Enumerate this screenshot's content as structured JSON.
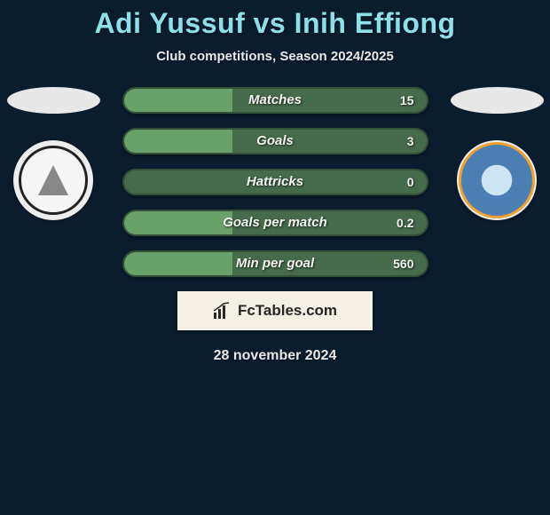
{
  "type": "infographic",
  "background_color": "#0a1d2e",
  "title": {
    "text": "Adi Yussuf vs Inih Effiong",
    "color": "#8de0ea",
    "fontsize": 32,
    "fontweight": "bold"
  },
  "subtitle": {
    "text": "Club competitions, Season 2024/2025",
    "color": "#e8e8e8",
    "fontsize": 15
  },
  "players": {
    "left": {
      "name": "Adi Yussuf",
      "avatar_bg": "#e8e8e8",
      "club_badge_bg": "#eeeeee",
      "club_ring": "#222222"
    },
    "right": {
      "name": "Inih Effiong",
      "avatar_bg": "#e8e8e8",
      "club_badge_bg": "#4b7fb4",
      "club_ring": "#f0a030"
    }
  },
  "bars": {
    "track_color": "#456b4b",
    "fill_default": "#6aa06a",
    "border_radius": 15,
    "height": 30,
    "label_fontsize": 15,
    "value_fontsize": 14,
    "label_color": "#f5f5f5",
    "items": [
      {
        "label": "Matches",
        "value": "15",
        "fill_pct": 36,
        "fill_color": "#6aa06a"
      },
      {
        "label": "Goals",
        "value": "3",
        "fill_pct": 36,
        "fill_color": "#6aa06a"
      },
      {
        "label": "Hattricks",
        "value": "0",
        "fill_pct": 0,
        "fill_color": "#6aa06a"
      },
      {
        "label": "Goals per match",
        "value": "0.2",
        "fill_pct": 36,
        "fill_color": "#6aa06a"
      },
      {
        "label": "Min per goal",
        "value": "560",
        "fill_pct": 36,
        "fill_color": "#6aa06a"
      }
    ]
  },
  "brand": {
    "text": "FcTables.com",
    "box_bg": "#f4f0e6",
    "text_color": "#262626",
    "icon_color": "#262626"
  },
  "date": {
    "text": "28 november 2024",
    "color": "#e8e8e8",
    "fontsize": 16
  }
}
